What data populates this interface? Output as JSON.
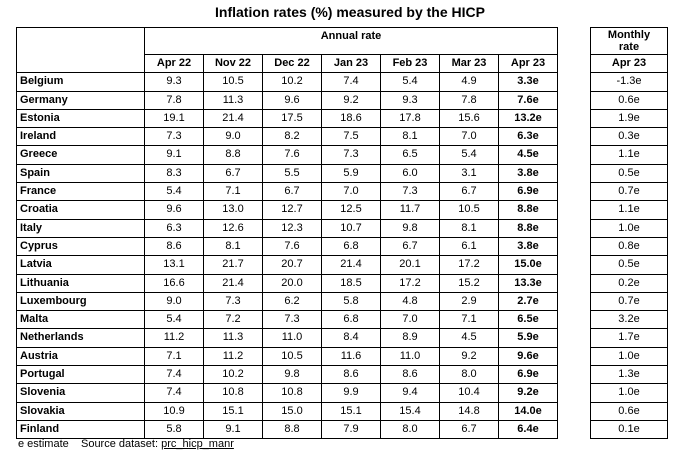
{
  "title": "Inflation rates (%) measured by the HICP",
  "annual_label": "Annual rate",
  "monthly_label": "Monthly rate",
  "columns": [
    "Apr 22",
    "Nov 22",
    "Dec 22",
    "Jan 23",
    "Feb 23",
    "Mar 23",
    "Apr 23"
  ],
  "monthly_column": "Apr 23",
  "rows": [
    {
      "country": "Belgium",
      "values": [
        "9.3",
        "10.5",
        "10.2",
        "7.4",
        "5.4",
        "4.9",
        "3.3e"
      ],
      "monthly": "-1.3e"
    },
    {
      "country": "Germany",
      "values": [
        "7.8",
        "11.3",
        "9.6",
        "9.2",
        "9.3",
        "7.8",
        "7.6e"
      ],
      "monthly": "0.6e"
    },
    {
      "country": "Estonia",
      "values": [
        "19.1",
        "21.4",
        "17.5",
        "18.6",
        "17.8",
        "15.6",
        "13.2e"
      ],
      "monthly": "1.9e"
    },
    {
      "country": "Ireland",
      "values": [
        "7.3",
        "9.0",
        "8.2",
        "7.5",
        "8.1",
        "7.0",
        "6.3e"
      ],
      "monthly": "0.3e"
    },
    {
      "country": "Greece",
      "values": [
        "9.1",
        "8.8",
        "7.6",
        "7.3",
        "6.5",
        "5.4",
        "4.5e"
      ],
      "monthly": "1.1e"
    },
    {
      "country": "Spain",
      "values": [
        "8.3",
        "6.7",
        "5.5",
        "5.9",
        "6.0",
        "3.1",
        "3.8e"
      ],
      "monthly": "0.5e"
    },
    {
      "country": "France",
      "values": [
        "5.4",
        "7.1",
        "6.7",
        "7.0",
        "7.3",
        "6.7",
        "6.9e"
      ],
      "monthly": "0.7e"
    },
    {
      "country": "Croatia",
      "values": [
        "9.6",
        "13.0",
        "12.7",
        "12.5",
        "11.7",
        "10.5",
        "8.8e"
      ],
      "monthly": "1.1e"
    },
    {
      "country": "Italy",
      "values": [
        "6.3",
        "12.6",
        "12.3",
        "10.7",
        "9.8",
        "8.1",
        "8.8e"
      ],
      "monthly": "1.0e"
    },
    {
      "country": "Cyprus",
      "values": [
        "8.6",
        "8.1",
        "7.6",
        "6.8",
        "6.7",
        "6.1",
        "3.8e"
      ],
      "monthly": "0.8e"
    },
    {
      "country": "Latvia",
      "values": [
        "13.1",
        "21.7",
        "20.7",
        "21.4",
        "20.1",
        "17.2",
        "15.0e"
      ],
      "monthly": "0.5e"
    },
    {
      "country": "Lithuania",
      "values": [
        "16.6",
        "21.4",
        "20.0",
        "18.5",
        "17.2",
        "15.2",
        "13.3e"
      ],
      "monthly": "0.2e"
    },
    {
      "country": "Luxembourg",
      "values": [
        "9.0",
        "7.3",
        "6.2",
        "5.8",
        "4.8",
        "2.9",
        "2.7e"
      ],
      "monthly": "0.7e"
    },
    {
      "country": "Malta",
      "values": [
        "5.4",
        "7.2",
        "7.3",
        "6.8",
        "7.0",
        "7.1",
        "6.5e"
      ],
      "monthly": "3.2e"
    },
    {
      "country": "Netherlands",
      "values": [
        "11.2",
        "11.3",
        "11.0",
        "8.4",
        "8.9",
        "4.5",
        "5.9e"
      ],
      "monthly": "1.7e"
    },
    {
      "country": "Austria",
      "values": [
        "7.1",
        "11.2",
        "10.5",
        "11.6",
        "11.0",
        "9.2",
        "9.6e"
      ],
      "monthly": "1.0e"
    },
    {
      "country": "Portugal",
      "values": [
        "7.4",
        "10.2",
        "9.8",
        "8.6",
        "8.6",
        "8.0",
        "6.9e"
      ],
      "monthly": "1.3e"
    },
    {
      "country": "Slovenia",
      "values": [
        "7.4",
        "10.8",
        "10.8",
        "9.9",
        "9.4",
        "10.4",
        "9.2e"
      ],
      "monthly": "1.0e"
    },
    {
      "country": "Slovakia",
      "values": [
        "10.9",
        "15.1",
        "15.0",
        "15.1",
        "15.4",
        "14.8",
        "14.0e"
      ],
      "monthly": "0.6e"
    },
    {
      "country": "Finland",
      "values": [
        "5.8",
        "9.1",
        "8.8",
        "7.9",
        "8.0",
        "6.7",
        "6.4e"
      ],
      "monthly": "0.1e"
    }
  ],
  "footer": {
    "estimate_note": "e estimate",
    "source_label": "Source dataset:",
    "source_link": "prc_hicp_manr"
  }
}
